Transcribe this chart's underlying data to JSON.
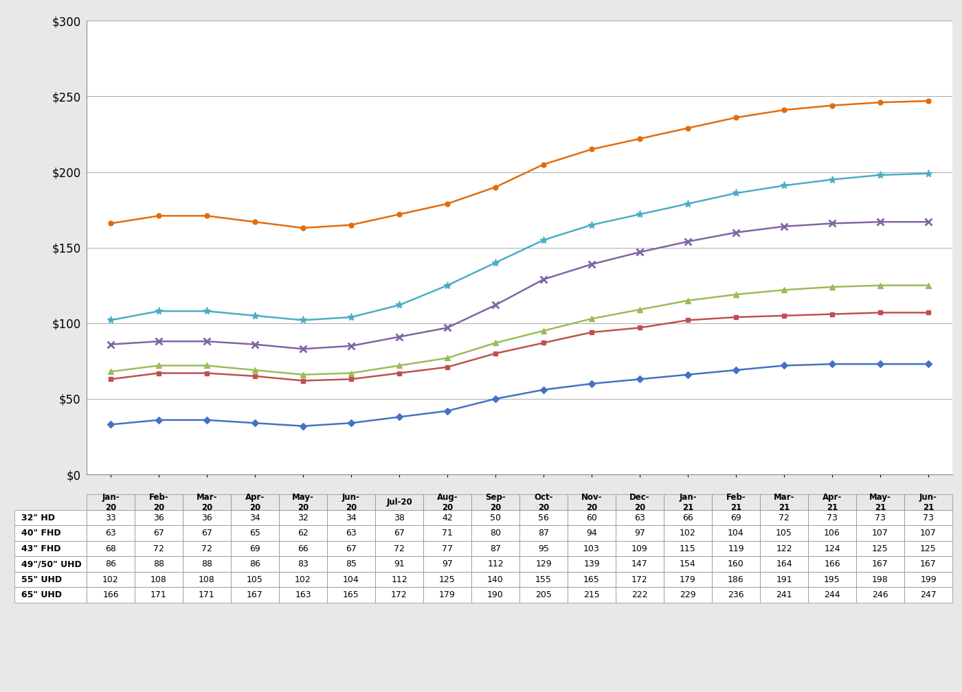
{
  "months_display": [
    "Jan-\n20",
    "Feb-\n20",
    "Mar-\n20",
    "Apr-\n20",
    "May-\n20",
    "Jun-\n20",
    "Jul-20",
    "Aug-\n20",
    "Sep-\n20",
    "Oct-\n20",
    "Nov-\n20",
    "Dec-\n20",
    "Jan-\n21",
    "Feb-\n21",
    "Mar-\n21",
    "Apr-\n21",
    "May-\n21",
    "Jun-\n21"
  ],
  "months_short": [
    "Jan-",
    "Feb-",
    "Mar-",
    "Apr-",
    "May-",
    "Jun-",
    "Jul-20",
    "Aug-",
    "Sep-",
    "Oct-",
    "Nov-",
    "Dec-",
    "Jan-",
    "Feb-",
    "Mar-",
    "Apr-",
    "May-",
    "Jun-"
  ],
  "series": [
    {
      "label": "32\" HD",
      "values": [
        33,
        36,
        36,
        34,
        32,
        34,
        38,
        42,
        50,
        56,
        60,
        63,
        66,
        69,
        72,
        73,
        73,
        73
      ],
      "color": "#4472C4",
      "marker": "D",
      "markersize": 5
    },
    {
      "label": "40\" FHD",
      "values": [
        63,
        67,
        67,
        65,
        62,
        63,
        67,
        71,
        80,
        87,
        94,
        97,
        102,
        104,
        105,
        106,
        107,
        107
      ],
      "color": "#C0504D",
      "marker": "s",
      "markersize": 5
    },
    {
      "label": "43\" FHD",
      "values": [
        68,
        72,
        72,
        69,
        66,
        67,
        72,
        77,
        87,
        95,
        103,
        109,
        115,
        119,
        122,
        124,
        125,
        125
      ],
      "color": "#9BBB59",
      "marker": "^",
      "markersize": 6
    },
    {
      "label": "49\"/50\" UHD",
      "values": [
        86,
        88,
        88,
        86,
        83,
        85,
        91,
        97,
        112,
        129,
        139,
        147,
        154,
        160,
        164,
        166,
        167,
        167
      ],
      "color": "#8064A2",
      "marker": "x",
      "markersize": 7,
      "markeredgewidth": 2
    },
    {
      "label": "55\" UHD",
      "values": [
        102,
        108,
        108,
        105,
        102,
        104,
        112,
        125,
        140,
        155,
        165,
        172,
        179,
        186,
        191,
        195,
        198,
        199
      ],
      "color": "#4BACC6",
      "marker": "*",
      "markersize": 8
    },
    {
      "label": "65\" UHD",
      "values": [
        166,
        171,
        171,
        167,
        163,
        165,
        172,
        179,
        190,
        205,
        215,
        222,
        229,
        236,
        241,
        244,
        246,
        247
      ],
      "color": "#E36C09",
      "marker": "o",
      "markersize": 5
    }
  ],
  "ylim": [
    0,
    300
  ],
  "yticks": [
    0,
    50,
    100,
    150,
    200,
    250,
    300
  ],
  "ytick_labels": [
    "$0",
    "$50",
    "$100",
    "$150",
    "$200",
    "$250",
    "$300"
  ],
  "bg_color": "#FFFFFF",
  "outer_bg": "#E8E8E8",
  "grid_color": "#AAAAAA",
  "table_row_labels": [
    "32\" HD",
    "40\" FHD",
    "43\" FHD",
    "49\"/50\" UHD",
    "55\" UHD",
    "65\" UHD"
  ]
}
